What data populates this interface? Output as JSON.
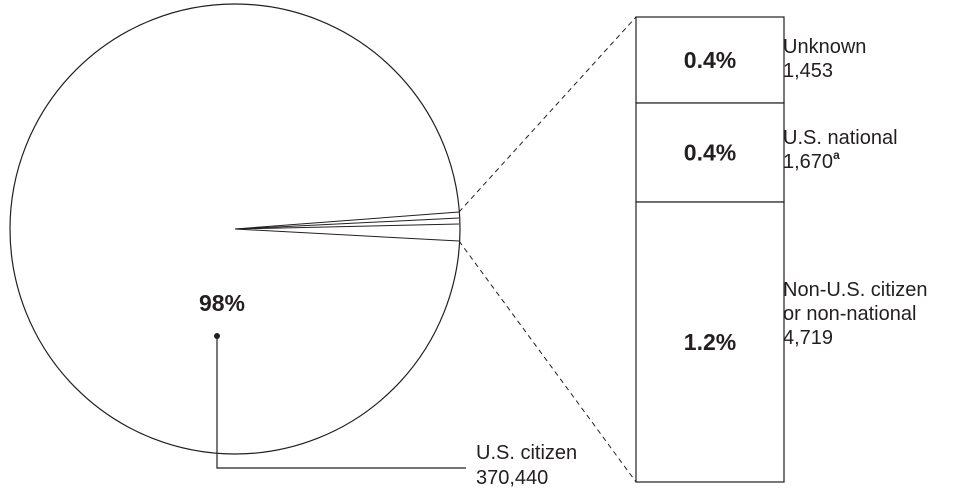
{
  "chart_data": {
    "type": "pie",
    "categories": [
      "U.S. citizen",
      "Non-U.S. citizen or non-national",
      "U.S. national",
      "Unknown"
    ],
    "counts": [
      370440,
      4719,
      1670,
      1453
    ],
    "percent_labels": [
      "98%",
      "1.2%",
      "0.4%",
      "0.4%"
    ],
    "pie_label": {
      "percent": "98%",
      "name": "U.S. citizen",
      "count": "370,440"
    },
    "breakout": [
      {
        "percent": "0.4%",
        "lines": [
          "Unknown",
          "1,453"
        ],
        "footnote": "",
        "value": 1453
      },
      {
        "percent": "0.4%",
        "lines": [
          "U.S. national",
          "1,670"
        ],
        "footnote": "a",
        "value": 1670
      },
      {
        "percent": "1.2%",
        "lines": [
          "Non-U.S. citizen",
          "or non-national",
          "4,719"
        ],
        "footnote": "",
        "value": 4719
      }
    ]
  }
}
